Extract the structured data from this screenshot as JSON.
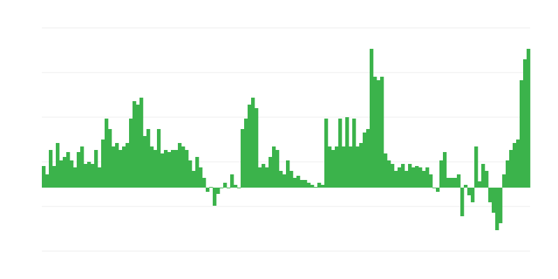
{
  "chart_data": {
    "type": "bar",
    "color": "#3bb34b",
    "ylim": [
      -91,
      229
    ],
    "yticks": [
      -91,
      -27,
      37,
      101,
      165,
      229
    ],
    "grid": true,
    "values": [
      31,
      19,
      54,
      31,
      64,
      39,
      44,
      51,
      39,
      29,
      51,
      59,
      34,
      37,
      34,
      54,
      29,
      69,
      99,
      84,
      59,
      64,
      54,
      59,
      64,
      99,
      124,
      119,
      129,
      74,
      84,
      59,
      54,
      84,
      49,
      54,
      51,
      54,
      54,
      64,
      59,
      54,
      39,
      24,
      44,
      29,
      14,
      -6,
      1,
      -26,
      -9,
      -1,
      7,
      -1,
      19,
      4,
      -1,
      84,
      99,
      119,
      129,
      114,
      29,
      34,
      29,
      44,
      59,
      54,
      24,
      19,
      39,
      24,
      14,
      17,
      11,
      11,
      7,
      4,
      1,
      7,
      4,
      99,
      59,
      54,
      59,
      99,
      59,
      101,
      59,
      99,
      59,
      64,
      79,
      84,
      199,
      159,
      154,
      159,
      49,
      39,
      34,
      24,
      29,
      34,
      24,
      34,
      29,
      31,
      29,
      24,
      29,
      19,
      -1,
      -6,
      39,
      51,
      14,
      14,
      14,
      19,
      -41,
      4,
      -11,
      -21,
      59,
      9,
      34,
      24,
      -21,
      -36,
      -61,
      -51,
      19,
      39,
      54,
      64,
      69,
      154,
      184,
      199
    ]
  }
}
